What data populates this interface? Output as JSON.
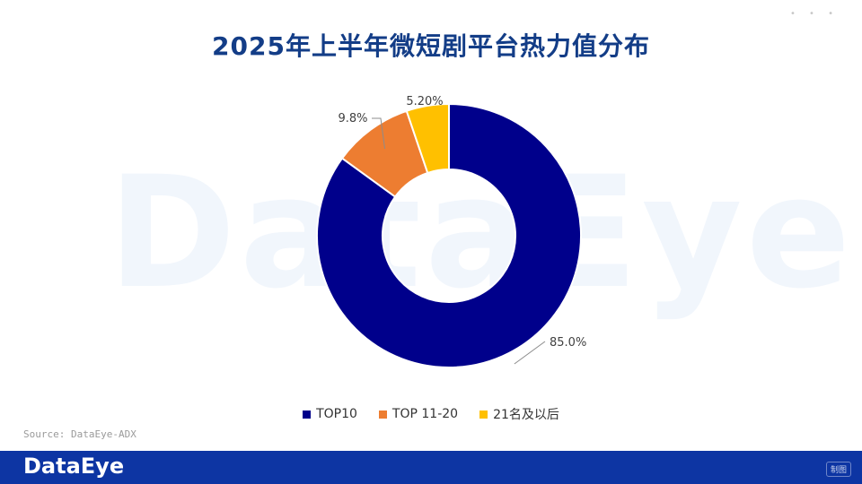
{
  "watermark_text": "DataEye",
  "top_dots": "• • •",
  "chart_data": {
    "type": "pie",
    "donut": true,
    "title": "2025年上半年微短剧平台热力值分布",
    "categories": [
      "TOP10",
      "TOP 11-20",
      "21名及以后"
    ],
    "values": [
      85.0,
      9.8,
      5.2
    ],
    "data_labels": [
      "85.0%",
      "9.8%",
      "5.20%"
    ],
    "colors": [
      "#00008b",
      "#ed7d31",
      "#ffc000"
    ],
    "legend_position": "bottom"
  },
  "source": "Source: DataEye-ADX",
  "footer": {
    "logo": "DataEye",
    "badge": "制图"
  }
}
